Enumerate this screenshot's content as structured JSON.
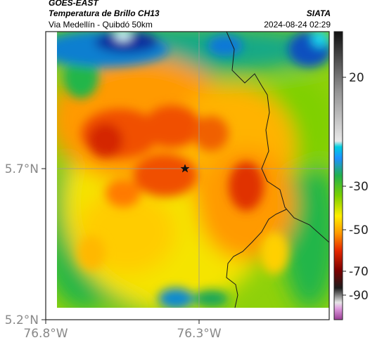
{
  "header": {
    "satellite": "GOES-EAST",
    "product": "Temperatura de Brillo CH13",
    "route": "Via Medellín - Quibdó 50km",
    "organization": "SIATA",
    "timestamp": "2024-08-24 02:29"
  },
  "axes": {
    "y_ticks": [
      {
        "label": "5.7°N",
        "value": 5.7
      },
      {
        "label": "5.2°N",
        "value": 5.2
      }
    ],
    "x_ticks": [
      {
        "label": "76.8°W",
        "value": -76.8
      },
      {
        "label": "76.3°W",
        "value": -76.3
      }
    ]
  },
  "colorbar": {
    "ticks": [
      {
        "label": "20",
        "value": 20
      },
      {
        "label": "-30",
        "value": -30
      },
      {
        "label": "-50",
        "value": -50
      },
      {
        "label": "-70",
        "value": -70
      },
      {
        "label": "-90",
        "value": -90
      }
    ],
    "colors": [
      "#9a3c96",
      "#e0e0e0",
      "#1c1c1c",
      "#7a0000",
      "#e62800",
      "#ff9900",
      "#ffee00",
      "#7bd000",
      "#22b14c",
      "#1e90ff",
      "#00cfe0",
      "#b0b0b0",
      "#202020"
    ]
  },
  "map": {
    "marker": "star-icon",
    "colors": {
      "deep_red": "#d42500",
      "red_orange": "#f05000",
      "orange": "#ff9a00",
      "yellow": "#f5e400",
      "lime": "#9ad400",
      "green": "#22b64a",
      "teal": "#15a987",
      "blue": "#0a2f9e",
      "cyan": "#1fd8ee"
    }
  }
}
